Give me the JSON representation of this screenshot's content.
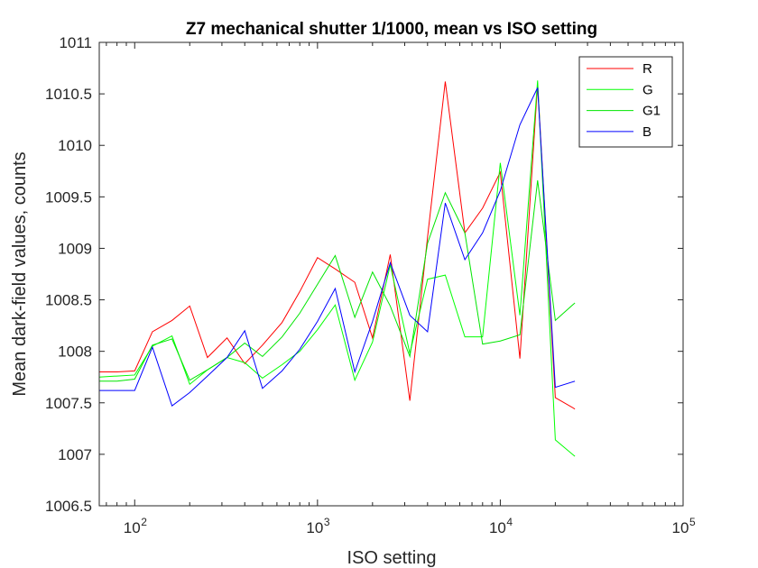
{
  "chart_data": {
    "type": "line",
    "title": "Z7 mechanical shutter 1/1000, mean vs ISO setting",
    "xlabel": "ISO setting",
    "ylabel": "Mean dark-field values, counts",
    "xscale": "log",
    "xlim": [
      64,
      100000
    ],
    "ylim": [
      1006.5,
      1011
    ],
    "xticks": [
      100,
      1000,
      10000,
      100000
    ],
    "xtick_labels": [
      {
        "base": "10",
        "exp": "2"
      },
      {
        "base": "10",
        "exp": "3"
      },
      {
        "base": "10",
        "exp": "4"
      },
      {
        "base": "10",
        "exp": "5"
      }
    ],
    "yticks": [
      1006.5,
      1007,
      1007.5,
      1008,
      1008.5,
      1009,
      1009.5,
      1010,
      1010.5,
      1011
    ],
    "ytick_labels": [
      "1006.5",
      "1007",
      "1007.5",
      "1008",
      "1008.5",
      "1009",
      "1009.5",
      "1010",
      "1010.5",
      "1011"
    ],
    "grid": false,
    "legend_position": "top-right",
    "x": [
      64,
      80,
      100,
      125,
      160,
      200,
      250,
      320,
      400,
      500,
      640,
      800,
      1000,
      1250,
      1600,
      2000,
      2500,
      3200,
      4000,
      5000,
      6400,
      8000,
      10000,
      12800,
      16000,
      20000,
      25600
    ],
    "series": [
      {
        "name": "R",
        "color": "#ff0000",
        "values": [
          1007.8,
          1007.8,
          1007.81,
          1008.19,
          1008.3,
          1008.44,
          1007.94,
          1008.13,
          1007.88,
          1008.06,
          1008.28,
          1008.58,
          1008.91,
          1008.8,
          1008.67,
          1008.13,
          1008.94,
          1007.52,
          1009.11,
          1010.62,
          1009.15,
          1009.39,
          1009.74,
          1007.93,
          1010.6,
          1007.55,
          1007.44
        ]
      },
      {
        "name": "G",
        "color": "#00ff00",
        "values": [
          1007.75,
          1007.76,
          1007.77,
          1008.05,
          1008.15,
          1007.68,
          1007.82,
          1007.94,
          1007.89,
          1007.74,
          1007.87,
          1008.0,
          1008.21,
          1008.45,
          1007.72,
          1008.09,
          1008.84,
          1007.98,
          1008.7,
          1008.74,
          1008.14,
          1008.14,
          1009.83,
          1008.35,
          1010.63,
          1007.14,
          1006.98
        ]
      },
      {
        "name": "G1",
        "color": "#00e600",
        "values": [
          1007.71,
          1007.71,
          1007.73,
          1008.06,
          1008.12,
          1007.72,
          1007.82,
          1007.94,
          1008.08,
          1007.95,
          1008.14,
          1008.37,
          1008.65,
          1008.93,
          1008.33,
          1008.77,
          1008.44,
          1007.95,
          1009.05,
          1009.54,
          1009.15,
          1008.07,
          1008.1,
          1008.16,
          1009.66,
          1008.3,
          1008.47
        ]
      },
      {
        "name": "B",
        "color": "#0000ff",
        "values": [
          1007.62,
          1007.62,
          1007.62,
          1008.04,
          1007.47,
          1007.6,
          1007.76,
          1007.94,
          1008.2,
          1007.64,
          1007.81,
          1008.02,
          1008.29,
          1008.61,
          1007.8,
          1008.29,
          1008.86,
          1008.35,
          1008.19,
          1009.44,
          1008.89,
          1009.15,
          1009.56,
          1010.2,
          1010.56,
          1007.65,
          1007.71
        ]
      }
    ]
  }
}
